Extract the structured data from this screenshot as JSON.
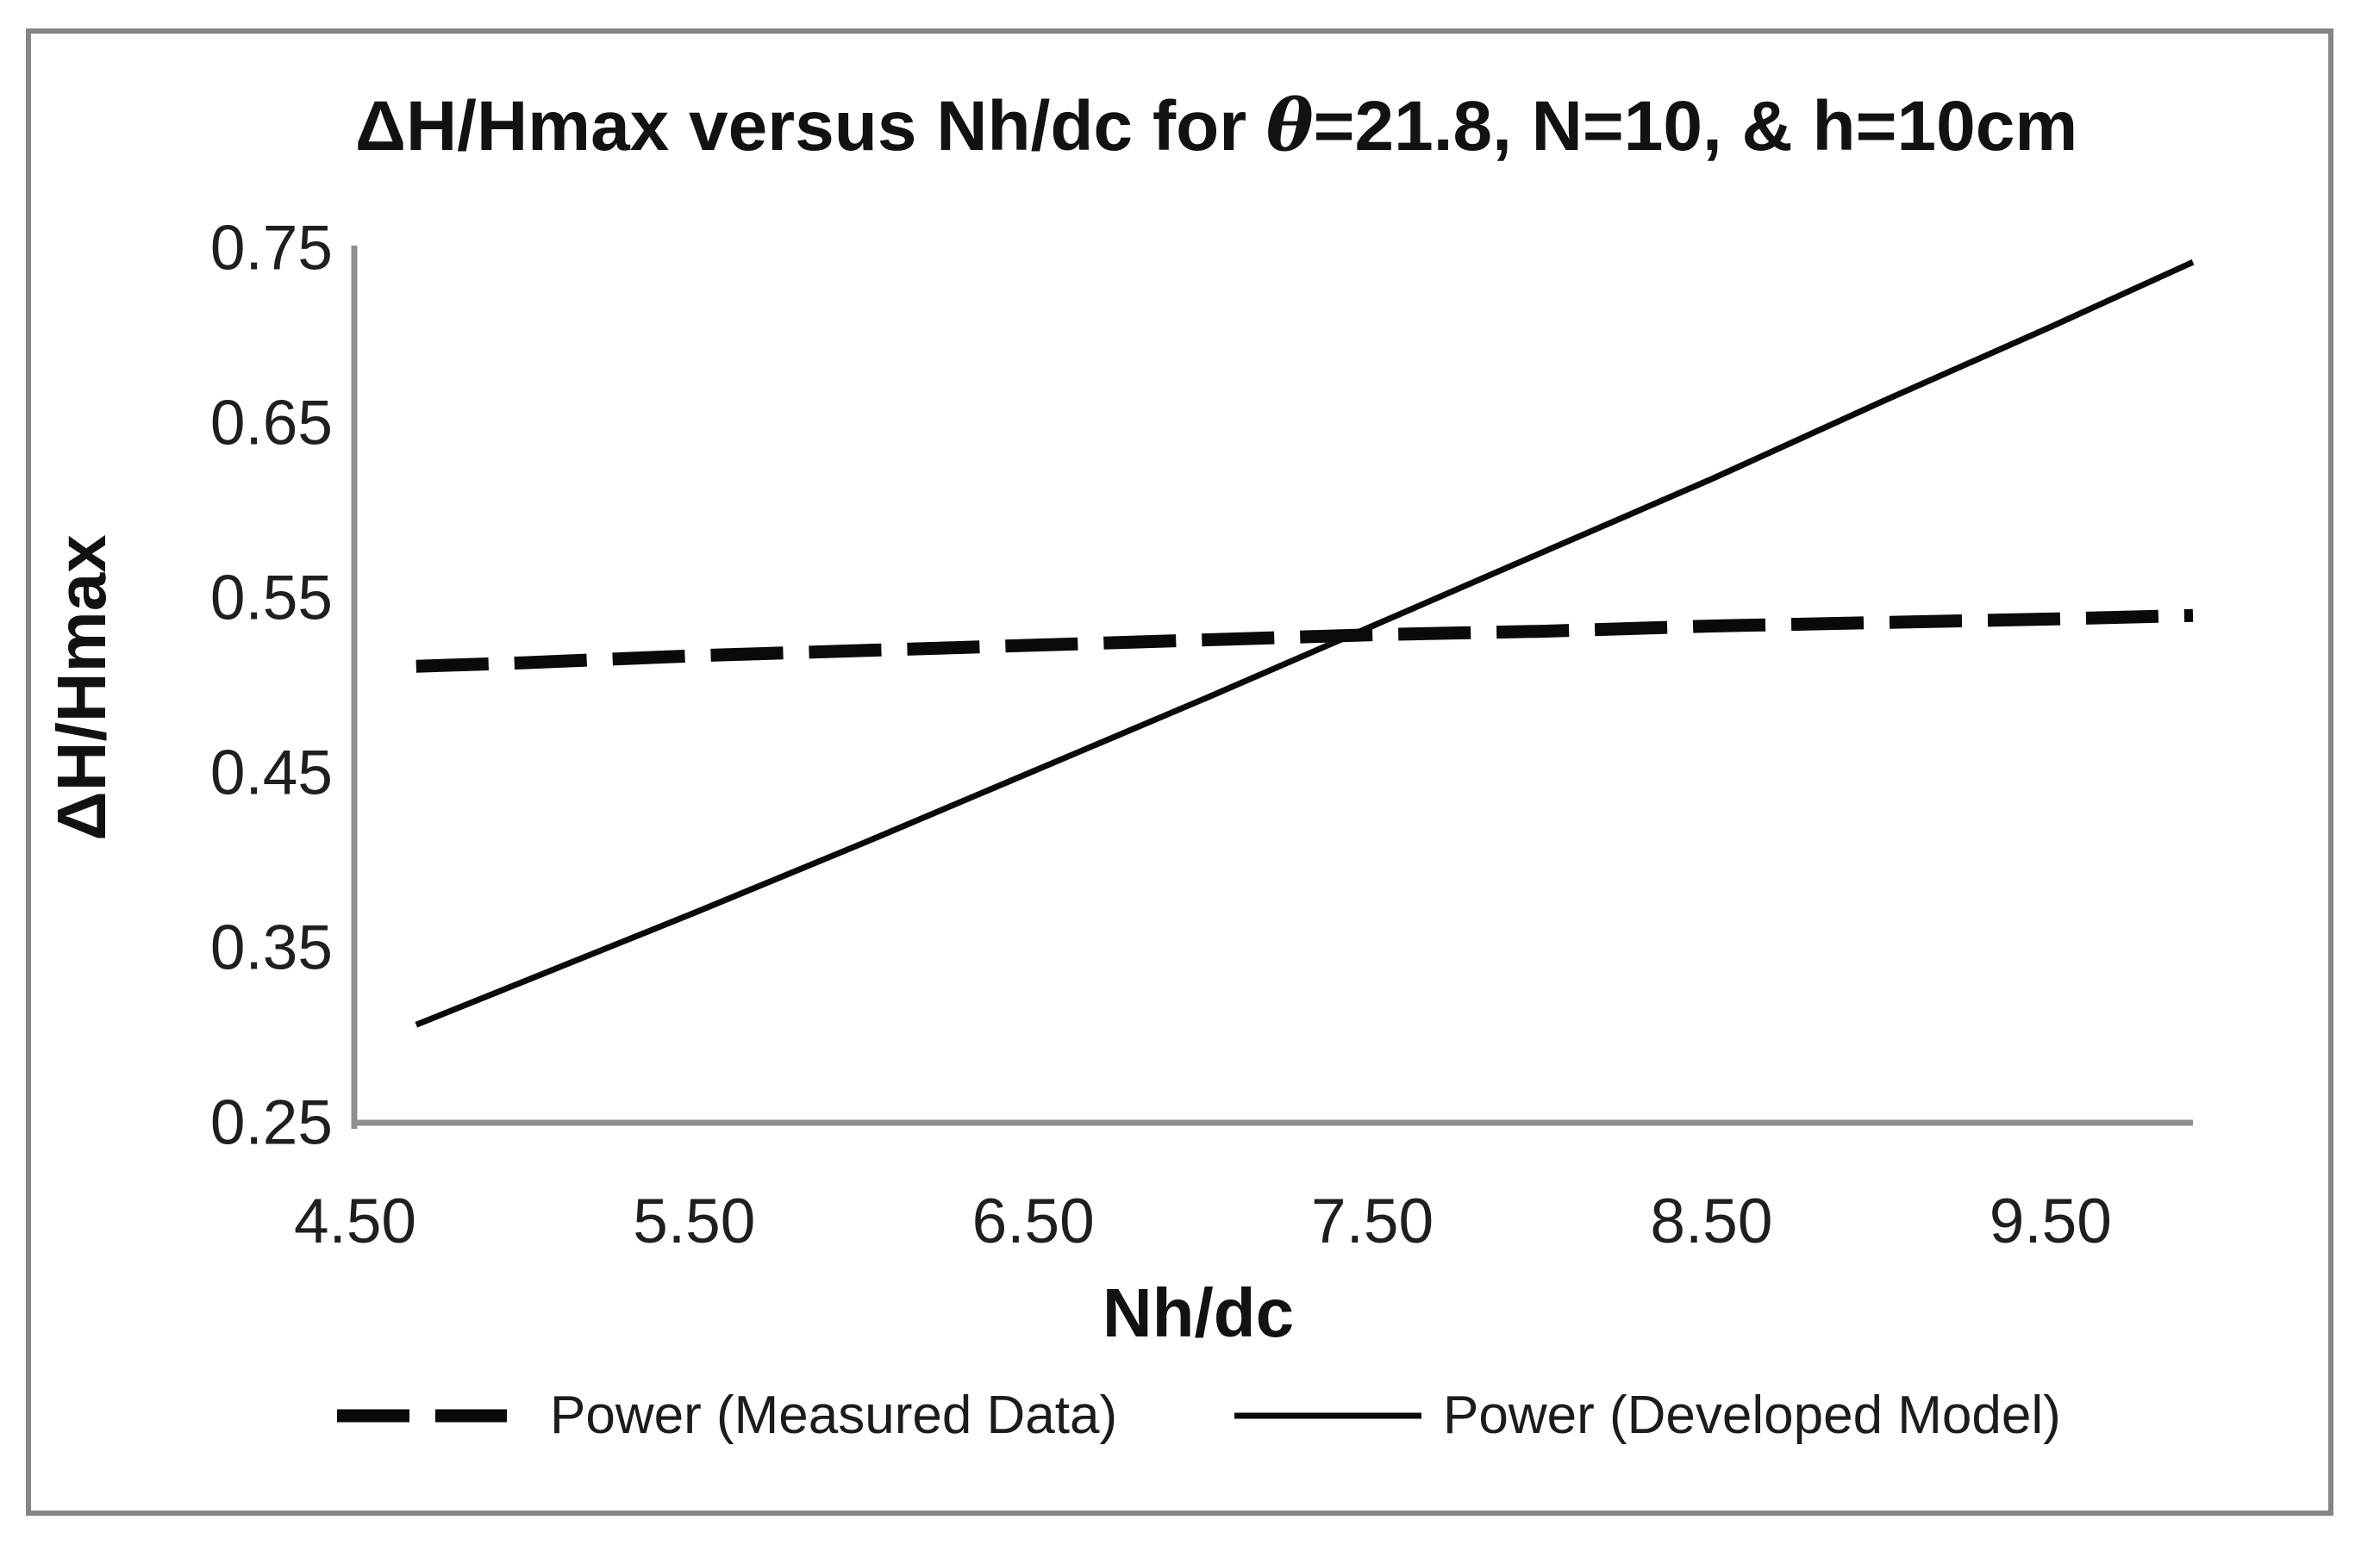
{
  "title": {
    "prefix": "ΔH/Hmax versus Nh/dc for ",
    "theta": "θ",
    "suffix": "=21.8, N=10, & h=10cm",
    "full": "ΔH/Hmax versus Nh/dc for θ=21.8, N=10, & h=10cm"
  },
  "chart_data": {
    "type": "line",
    "title": "ΔH/Hmax versus Nh/dc for θ=21.8, N=10, & h=10cm",
    "xlabel": "Nh/dc",
    "ylabel": "ΔH/Hmax",
    "xlim": [
      4.5,
      9.92
    ],
    "ylim": [
      0.25,
      0.75
    ],
    "grid": false,
    "legend_position": "bottom",
    "x_ticks": [
      {
        "value": 4.5,
        "label": "4.50"
      },
      {
        "value": 5.5,
        "label": "5.50"
      },
      {
        "value": 6.5,
        "label": "6.50"
      },
      {
        "value": 7.5,
        "label": "7.50"
      },
      {
        "value": 8.5,
        "label": "8.50"
      },
      {
        "value": 9.5,
        "label": "9.50"
      }
    ],
    "y_ticks": [
      {
        "value": 0.25,
        "label": "0.25"
      },
      {
        "value": 0.35,
        "label": "0.35"
      },
      {
        "value": 0.45,
        "label": "0.45"
      },
      {
        "value": 0.55,
        "label": "0.55"
      },
      {
        "value": 0.65,
        "label": "0.65"
      },
      {
        "value": 0.75,
        "label": "0.75"
      }
    ],
    "series": [
      {
        "name": "Power (Measured Data)",
        "style": "dashed",
        "x": [
          4.68,
          5.0,
          5.5,
          6.0,
          6.5,
          7.0,
          7.5,
          8.0,
          8.5,
          9.0,
          9.5,
          9.92
        ],
        "y": [
          0.511,
          0.513,
          0.517,
          0.52,
          0.523,
          0.526,
          0.529,
          0.531,
          0.534,
          0.536,
          0.538,
          0.54
        ]
      },
      {
        "name": "Power (Developed Model)",
        "style": "solid",
        "x": [
          4.68,
          5.0,
          5.5,
          6.0,
          6.5,
          7.0,
          7.5,
          8.0,
          8.5,
          9.0,
          9.5,
          9.92
        ],
        "y": [
          0.306,
          0.331,
          0.37,
          0.41,
          0.451,
          0.492,
          0.534,
          0.576,
          0.618,
          0.662,
          0.705,
          0.742
        ]
      }
    ]
  },
  "colors": {
    "series_line": "#0a0a0a",
    "axis_line": "#8f8f8f",
    "frame_border": "#868686",
    "text": "#1f1f1f",
    "background": "#ffffff"
  }
}
